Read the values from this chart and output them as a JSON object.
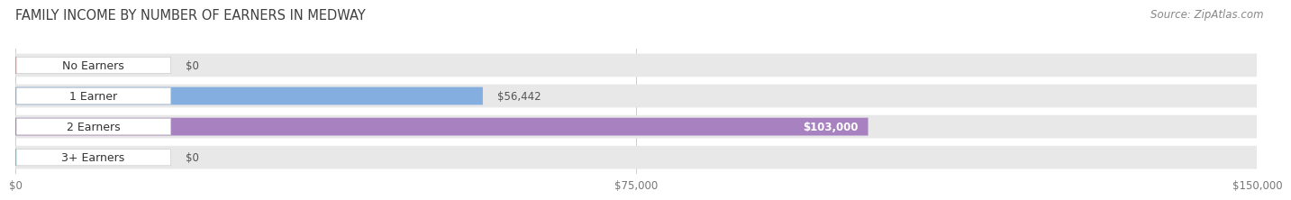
{
  "title": "FAMILY INCOME BY NUMBER OF EARNERS IN MEDWAY",
  "source": "Source: ZipAtlas.com",
  "categories": [
    "No Earners",
    "1 Earner",
    "2 Earners",
    "3+ Earners"
  ],
  "values": [
    0,
    56442,
    103000,
    0
  ],
  "bar_colors": [
    "#f08888",
    "#85aee0",
    "#a882c0",
    "#5ec8c0"
  ],
  "value_labels": [
    "$0",
    "$56,442",
    "$103,000",
    "$0"
  ],
  "value_label_inside": [
    false,
    false,
    true,
    false
  ],
  "xlim": [
    0,
    150000
  ],
  "xtick_values": [
    0,
    75000,
    150000
  ],
  "xtick_labels": [
    "$0",
    "$75,000",
    "$150,000"
  ],
  "background_color": "#ffffff",
  "title_fontsize": 10.5,
  "source_fontsize": 8.5,
  "bar_height": 0.58,
  "bg_bar_color": "#e8e8e8"
}
